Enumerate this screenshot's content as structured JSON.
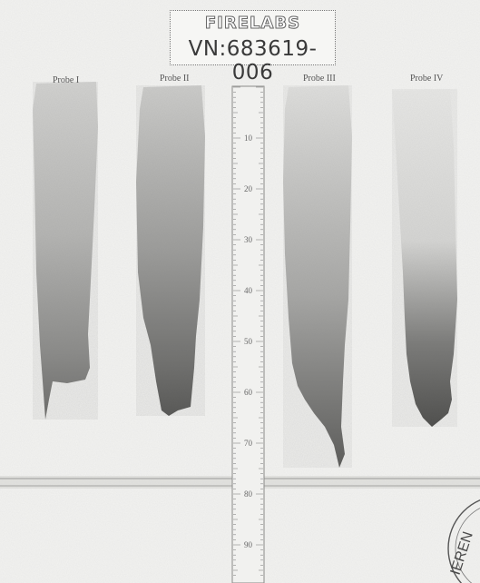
{
  "stamp": {
    "logo": "FIRELABS",
    "subline": "",
    "vn": "VN:683619-006"
  },
  "samples": [
    {
      "label": "Probe I"
    },
    {
      "label": "Probe II"
    },
    {
      "label": "Probe III"
    },
    {
      "label": "Probe IV"
    }
  ],
  "ruler": {
    "ticks": [
      "10",
      "20",
      "30",
      "40",
      "50",
      "60",
      "70",
      "80",
      "90"
    ]
  },
  "seal": {
    "text": "IEREN"
  }
}
